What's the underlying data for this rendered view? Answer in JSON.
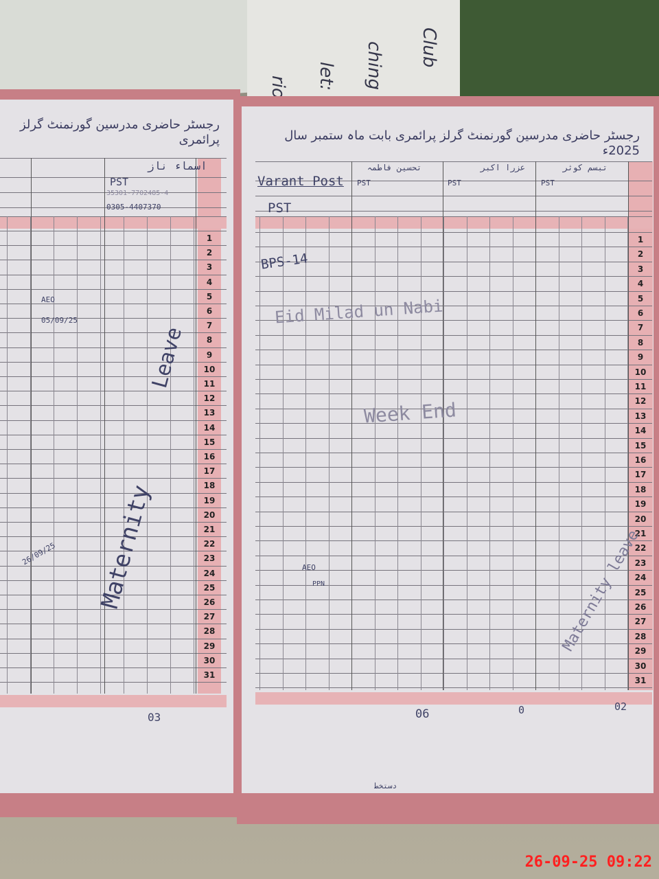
{
  "left_page": {
    "title": "رجسٹر حاضری مدرسین گورنمنٹ گرلز پرائمری",
    "teacher_name": "اسماء ناز",
    "designation": "PST",
    "cnic": "35301-7702485-4",
    "phone": "0305-4407370",
    "annotations": [
      "Leave",
      "Maternity",
      "AEO",
      "05/09/25",
      "26/09/25"
    ],
    "total": "03"
  },
  "right_page": {
    "title": "رجسٹر حاضری مدرسین گورنمنٹ گرلز پرائمری بابت ماہ ستمبر سال 2025ء",
    "vacant_post": "Varant Post",
    "vacant_designation": "PST",
    "bps": "BPS-14",
    "teachers": [
      {
        "name": "تحسین فاطمہ",
        "designation": "PST"
      },
      {
        "name": "عزرا اکبر",
        "designation": "PST"
      },
      {
        "name": "تبسم کوثر",
        "designation": "PST"
      }
    ],
    "holiday_note": "Eid Milad un Nabi",
    "weekend_note": "Week End",
    "annotations": [
      "AEO",
      "PPN",
      "Maternity leave"
    ],
    "totals": [
      "06",
      "0",
      "02"
    ],
    "footer": "دستخط"
  },
  "day_numbers": [
    "1",
    "2",
    "3",
    "4",
    "5",
    "6",
    "7",
    "8",
    "9",
    "10",
    "11",
    "12",
    "13",
    "14",
    "15",
    "16",
    "17",
    "18",
    "19",
    "20",
    "21",
    "22",
    "23",
    "24",
    "25",
    "26",
    "27",
    "28",
    "29",
    "30",
    "31"
  ],
  "timestamp": "26-09-25  09:22",
  "colors": {
    "ink": "#3f4266",
    "pink_column": "#e7b0b3",
    "timestamp": "#ff2020"
  }
}
